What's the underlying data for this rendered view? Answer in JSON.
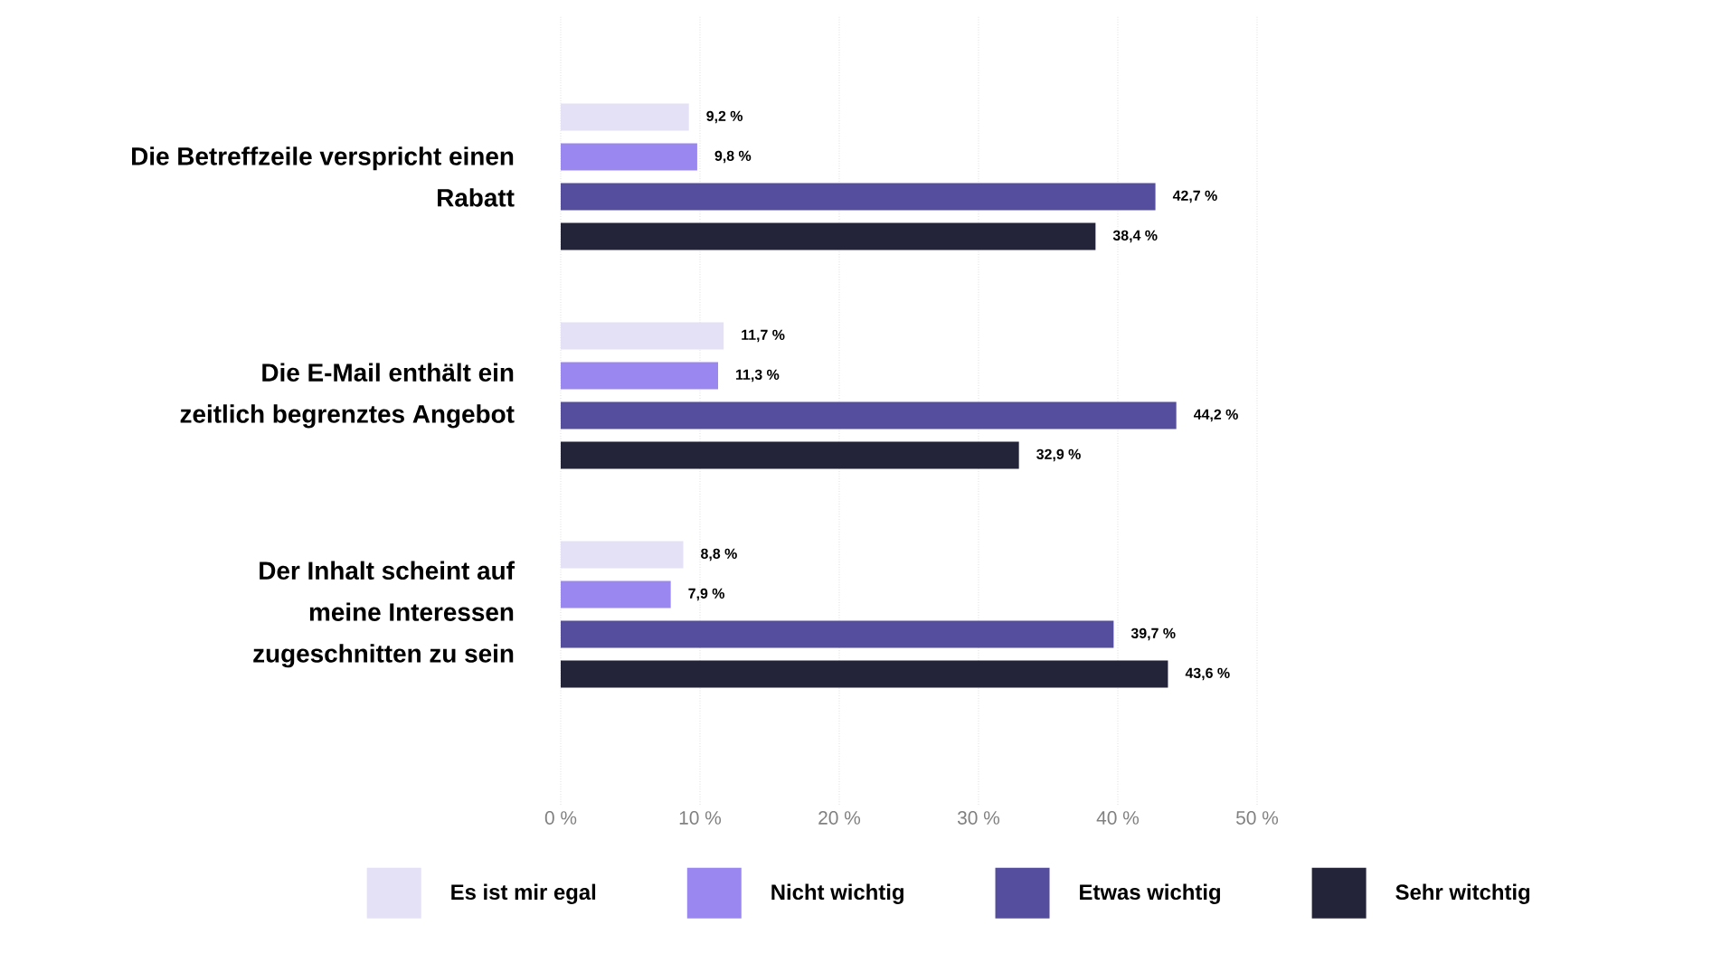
{
  "chart_data": {
    "type": "bar",
    "orientation": "horizontal",
    "categories": [
      "Die Betreffzeile verspricht einen Rabatt",
      "Die E-Mail enthält ein zeitlich begrenztes Angebot",
      "Der Inhalt scheint auf meine Interessen zugeschnitten zu sein"
    ],
    "series": [
      {
        "name": "Es ist mir egal",
        "color": "#e4e0f5",
        "values": [
          9.2,
          11.7,
          8.8
        ],
        "value_labels": [
          "9,2 %",
          "11,7 %",
          "8,8 %"
        ]
      },
      {
        "name": "Nicht wichtig",
        "color": "#9b87f0",
        "values": [
          9.8,
          11.3,
          7.9
        ],
        "value_labels": [
          "9,8 %",
          "11,3 %",
          "7,9 %"
        ]
      },
      {
        "name": "Etwas wichtig",
        "color": "#554e9e",
        "values": [
          42.7,
          44.2,
          39.7
        ],
        "value_labels": [
          "42,7 %",
          "44,2 %",
          "39,7 %"
        ]
      },
      {
        "name": "Sehr witchtig",
        "color": "#23233a",
        "values": [
          38.4,
          32.9,
          43.6
        ],
        "value_labels": [
          "38,4 %",
          "32,9 %",
          "43,6 %"
        ]
      }
    ],
    "xlim": [
      0,
      50
    ],
    "xticks": [
      {
        "value": 0,
        "label": "0 %"
      },
      {
        "value": 10,
        "label": "10 %"
      },
      {
        "value": 20,
        "label": "20 %"
      },
      {
        "value": 30,
        "label": "30 %"
      },
      {
        "value": 40,
        "label": "40 %"
      },
      {
        "value": 50,
        "label": "50 %"
      }
    ],
    "grid": "x",
    "legend": "bottom"
  }
}
